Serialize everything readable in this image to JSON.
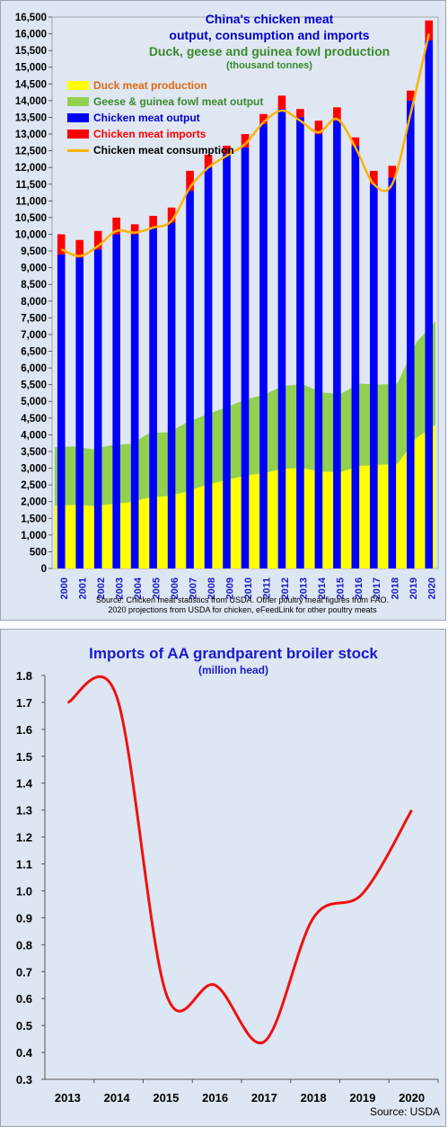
{
  "chart_data": [
    {
      "type": "bar",
      "title": "China's chicken meat output, consumption and imports",
      "subtitle": "Duck, geese and guinea fowl production",
      "units": "(thousand tonnes)",
      "categories": [
        "2000",
        "2001",
        "2002",
        "2003",
        "2004",
        "2005",
        "2006",
        "2007",
        "2008",
        "2009",
        "2010",
        "2011",
        "2012",
        "2013",
        "2014",
        "2015",
        "2016",
        "2017",
        "2018",
        "2019",
        "2020"
      ],
      "ylim": [
        0,
        16500
      ],
      "yticks": [
        "0",
        "500",
        "1,000",
        "1,500",
        "2,000",
        "2,500",
        "3,000",
        "3,500",
        "4,000",
        "4,500",
        "5,000",
        "5,500",
        "6,000",
        "6,500",
        "7,000",
        "7,500",
        "8,000",
        "8,500",
        "9,000",
        "9,500",
        "10,000",
        "10,500",
        "11,000",
        "11,500",
        "12,000",
        "12,500",
        "13,000",
        "13,500",
        "14,000",
        "14,500",
        "15,000",
        "15,500",
        "16,000",
        "16,500"
      ],
      "series": [
        {
          "name": "Duck meat production",
          "type": "area",
          "color": "#ffff00",
          "values": [
            1880,
            1900,
            1870,
            1920,
            1990,
            2130,
            2170,
            2310,
            2510,
            2640,
            2780,
            2850,
            2990,
            3000,
            2900,
            2880,
            3070,
            3100,
            3130,
            3900,
            4300
          ]
        },
        {
          "name": "Geese & guinea fowl meat output",
          "type": "area",
          "color": "#92d050",
          "values": [
            1750,
            1750,
            1700,
            1770,
            1740,
            1930,
            1900,
            2080,
            2100,
            2180,
            2270,
            2350,
            2470,
            2520,
            2370,
            2340,
            2460,
            2400,
            2400,
            2870,
            3100
          ]
        },
        {
          "name": "Chicken meat output",
          "type": "bar",
          "color": "#0000ff",
          "values": [
            9400,
            9300,
            9550,
            10000,
            10000,
            10200,
            10350,
            11300,
            12000,
            12400,
            12600,
            13300,
            13750,
            13500,
            13000,
            13400,
            12650,
            11500,
            11700,
            14000,
            15800
          ]
        },
        {
          "name": "Chicken meat imports",
          "type": "bar",
          "color": "#ff0000",
          "values": [
            600,
            530,
            550,
            500,
            300,
            350,
            450,
            600,
            380,
            250,
            400,
            300,
            400,
            250,
            400,
            400,
            250,
            400,
            350,
            300,
            600
          ]
        },
        {
          "name": "Chicken meat consumption",
          "type": "line",
          "color": "#ffb300",
          "values": [
            9550,
            9350,
            9650,
            10100,
            10050,
            10200,
            10400,
            11400,
            12000,
            12350,
            12700,
            13350,
            13700,
            13400,
            13050,
            13450,
            12600,
            11500,
            11500,
            13600,
            16000
          ]
        }
      ],
      "source": [
        "Source: Chicken meat statistics from USDA. Other poultry meat figures from FAO.",
        "2020 projections from USDA for chicken, eFeedLink for other poultry meats"
      ]
    },
    {
      "type": "line",
      "title": "Imports of AA grandparent broiler stock",
      "units": "(million head)",
      "categories": [
        "2013",
        "2014",
        "2015",
        "2016",
        "2017",
        "2018",
        "2019",
        "2020"
      ],
      "ylim": [
        0.3,
        1.8
      ],
      "yticks": [
        "0.3",
        "0.4",
        "0.5",
        "0.6",
        "0.7",
        "0.8",
        "0.9",
        "1.0",
        "1.1",
        "1.2",
        "1.3",
        "1.4",
        "1.5",
        "1.6",
        "1.7",
        "1.8"
      ],
      "series": [
        {
          "name": "AA grandparent broiler stock imports",
          "color": "#ee1111",
          "values": [
            1.7,
            1.72,
            0.62,
            0.65,
            0.44,
            0.9,
            0.99,
            1.3
          ]
        }
      ],
      "source": "Source: USDA"
    }
  ],
  "top": {
    "title_line1": "China's chicken meat",
    "title_line2": "output, consumption and imports",
    "title_line3": "Duck, geese and guinea fowl production",
    "units": "(thousand tonnes)",
    "legend": [
      {
        "label": "Duck meat production",
        "color": "#ffff00",
        "text_color": "#e06a10"
      },
      {
        "label": "Geese & guinea fowl meat output",
        "color": "#92d050",
        "text_color": "#3a8a2a"
      },
      {
        "label": "Chicken meat output",
        "color": "#0000ff",
        "text_color": "#0000cc"
      },
      {
        "label": "Chicken meat imports",
        "color": "#ff0000",
        "text_color": "#ff0000"
      },
      {
        "label": "Chicken meat consumption",
        "color": "#ffb300",
        "text_color": "#000000"
      }
    ],
    "source_line1": "Source: Chicken meat statistics from USDA. Other poultry meat figures from FAO.",
    "source_line2": "2020 projections from USDA for chicken, eFeedLink for other poultry meats"
  },
  "bottom": {
    "title": "Imports of AA grandparent broiler stock",
    "units": "(million head)",
    "source": "Source: USDA"
  }
}
